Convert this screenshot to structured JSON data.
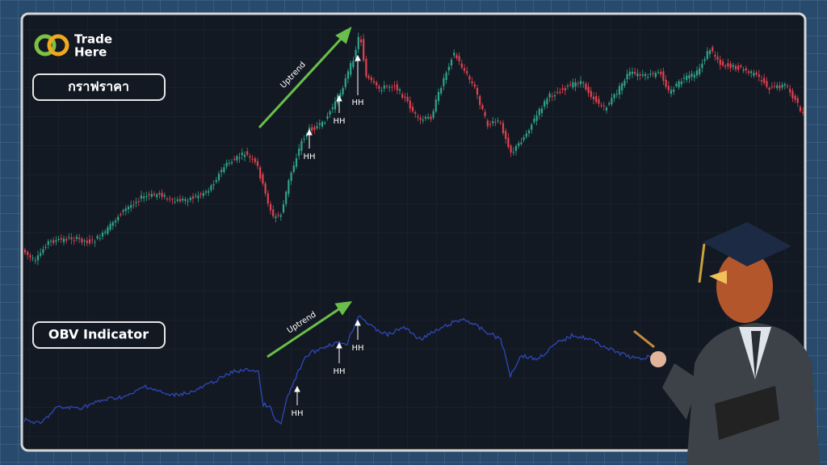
{
  "logo": {
    "line1": "Trade",
    "line2": "Here"
  },
  "price_panel": {
    "label": "กราฟราคา",
    "trend_label": "Uptrend",
    "highs": [
      "HH",
      "HH",
      "HH"
    ]
  },
  "obv_panel": {
    "label": "OBV Indicator",
    "trend_label": "Uptrend",
    "highs": [
      "HH",
      "HH",
      "HH"
    ]
  }
}
